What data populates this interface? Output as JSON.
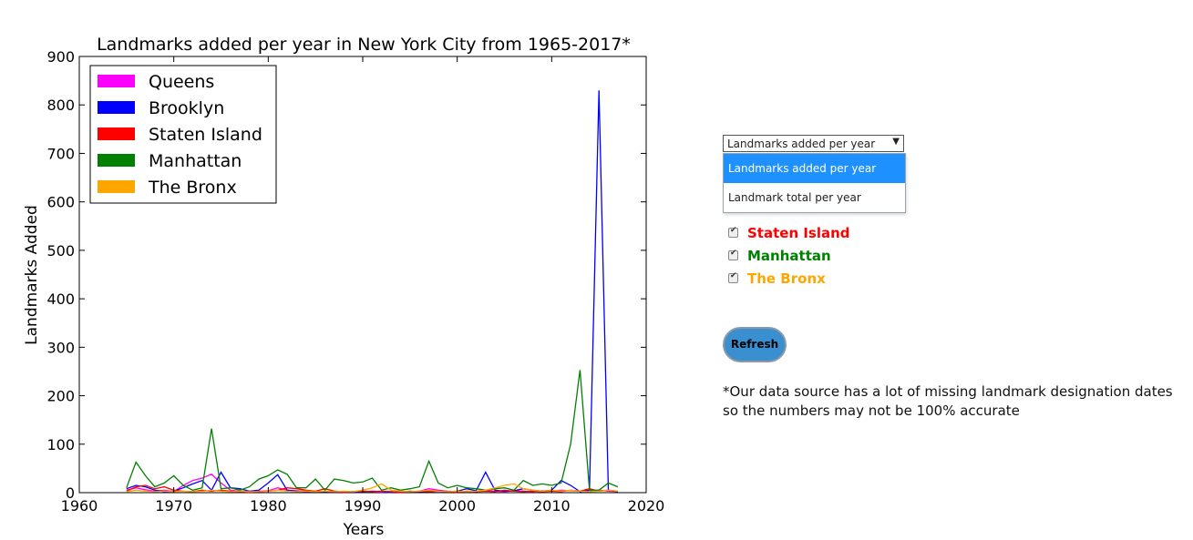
{
  "chart_data": {
    "type": "line",
    "title": "Landmarks added per year in New York City from 1965-2017*",
    "xlabel": "Years",
    "ylabel": "Landmarks Added",
    "xlim": [
      1960,
      2020
    ],
    "ylim": [
      0,
      900
    ],
    "xticks": [
      "1960",
      "1970",
      "1980",
      "1990",
      "2000",
      "2010",
      "2020"
    ],
    "yticks": [
      "0",
      "100",
      "200",
      "300",
      "400",
      "500",
      "600",
      "700",
      "800",
      "900"
    ],
    "legend_position": "top-left",
    "grid": false,
    "series": [
      {
        "name": "Queens",
        "color": "#ff00ff",
        "x": [
          1965,
          1966,
          1967,
          1968,
          1969,
          1970,
          1971,
          1972,
          1973,
          1974,
          1975,
          1976,
          1977,
          1978,
          1979,
          1980,
          1981,
          1982,
          1983,
          1984,
          1985,
          1986,
          1987,
          1988,
          1989,
          1990,
          1991,
          1992,
          1993,
          1994,
          1995,
          1996,
          1997,
          1998,
          1999,
          2000,
          2001,
          2002,
          2003,
          2004,
          2005,
          2006,
          2007,
          2008,
          2009,
          2010,
          2011,
          2012,
          2013,
          2014,
          2015,
          2016,
          2017
        ],
        "y": [
          5,
          10,
          6,
          3,
          5,
          2,
          15,
          25,
          30,
          38,
          20,
          5,
          3,
          2,
          3,
          4,
          10,
          5,
          4,
          3,
          2,
          3,
          2,
          1,
          2,
          3,
          2,
          1,
          2,
          1,
          2,
          3,
          8,
          5,
          3,
          2,
          2,
          3,
          5,
          3,
          2,
          4,
          3,
          2,
          4,
          3,
          5,
          4,
          3,
          2,
          5,
          3,
          2
        ]
      },
      {
        "name": "Brooklyn",
        "color": "#0000ff",
        "x": [
          1965,
          1966,
          1967,
          1968,
          1969,
          1970,
          1971,
          1972,
          1973,
          1974,
          1975,
          1976,
          1977,
          1978,
          1979,
          1980,
          1981,
          1982,
          1983,
          1984,
          1985,
          1986,
          1987,
          1988,
          1989,
          1990,
          1991,
          1992,
          1993,
          1994,
          1995,
          1996,
          1997,
          1998,
          1999,
          2000,
          2001,
          2002,
          2003,
          2004,
          2005,
          2006,
          2007,
          2008,
          2009,
          2010,
          2011,
          2012,
          2013,
          2014,
          2015,
          2016,
          2017
        ],
        "y": [
          8,
          15,
          12,
          5,
          2,
          3,
          10,
          18,
          25,
          5,
          42,
          10,
          8,
          3,
          5,
          20,
          37,
          5,
          3,
          2,
          3,
          2,
          3,
          2,
          1,
          2,
          3,
          2,
          1,
          2,
          3,
          2,
          2,
          3,
          2,
          3,
          8,
          4,
          42,
          5,
          3,
          4,
          8,
          5,
          3,
          5,
          25,
          15,
          2,
          5,
          830,
          5,
          2
        ]
      },
      {
        "name": "Staten Island",
        "color": "#ff0000",
        "x": [
          1965,
          1966,
          1967,
          1968,
          1969,
          1970,
          1971,
          1972,
          1973,
          1974,
          1975,
          1976,
          1977,
          1978,
          1979,
          1980,
          1981,
          1982,
          1983,
          1984,
          1985,
          1986,
          1987,
          1988,
          1989,
          1990,
          1991,
          1992,
          1993,
          1994,
          1995,
          1996,
          1997,
          1998,
          1999,
          2000,
          2001,
          2002,
          2003,
          2004,
          2005,
          2006,
          2007,
          2008,
          2009,
          2010,
          2011,
          2012,
          2013,
          2014,
          2015,
          2016,
          2017
        ],
        "y": [
          3,
          12,
          15,
          8,
          12,
          5,
          3,
          2,
          5,
          3,
          5,
          3,
          2,
          1,
          2,
          3,
          5,
          10,
          8,
          5,
          3,
          8,
          3,
          1,
          2,
          3,
          2,
          3,
          2,
          1,
          2,
          3,
          2,
          3,
          2,
          1,
          3,
          2,
          3,
          2,
          5,
          3,
          2,
          3,
          2,
          3,
          2,
          5,
          3,
          8,
          3,
          5,
          3
        ]
      },
      {
        "name": "Manhattan",
        "color": "#008000",
        "x": [
          1965,
          1966,
          1967,
          1968,
          1969,
          1970,
          1971,
          1972,
          1973,
          1974,
          1975,
          1976,
          1977,
          1978,
          1979,
          1980,
          1981,
          1982,
          1983,
          1984,
          1985,
          1986,
          1987,
          1988,
          1989,
          1990,
          1991,
          1992,
          1993,
          1994,
          1995,
          1996,
          1997,
          1998,
          1999,
          2000,
          2001,
          2002,
          2003,
          2004,
          2005,
          2006,
          2007,
          2008,
          2009,
          2010,
          2011,
          2012,
          2013,
          2014,
          2015,
          2016,
          2017
        ],
        "y": [
          10,
          63,
          35,
          12,
          20,
          35,
          15,
          5,
          10,
          132,
          8,
          10,
          5,
          12,
          28,
          35,
          47,
          38,
          10,
          10,
          28,
          5,
          28,
          25,
          20,
          22,
          30,
          5,
          10,
          5,
          8,
          12,
          65,
          20,
          10,
          15,
          10,
          8,
          5,
          8,
          10,
          5,
          25,
          15,
          18,
          15,
          20,
          100,
          253,
          5,
          5,
          20,
          12
        ]
      },
      {
        "name": "The Bronx",
        "color": "#ffa500",
        "x": [
          1965,
          1966,
          1967,
          1968,
          1969,
          1970,
          1971,
          1972,
          1973,
          1974,
          1975,
          1976,
          1977,
          1978,
          1979,
          1980,
          1981,
          1982,
          1983,
          1984,
          1985,
          1986,
          1987,
          1988,
          1989,
          1990,
          1991,
          1992,
          1993,
          1994,
          1995,
          1996,
          1997,
          1998,
          1999,
          2000,
          2001,
          2002,
          2003,
          2004,
          2005,
          2006,
          2007,
          2008,
          2009,
          2010,
          2011,
          2012,
          2013,
          2014,
          2015,
          2016,
          2017
        ],
        "y": [
          2,
          5,
          3,
          2,
          3,
          2,
          3,
          2,
          3,
          5,
          3,
          2,
          3,
          2,
          2,
          3,
          5,
          3,
          2,
          3,
          2,
          3,
          2,
          3,
          2,
          5,
          10,
          18,
          5,
          3,
          2,
          3,
          5,
          3,
          2,
          3,
          2,
          3,
          5,
          10,
          15,
          18,
          8,
          5,
          3,
          5,
          3,
          5,
          3,
          2,
          3,
          5,
          3
        ]
      }
    ]
  },
  "controls": {
    "select": {
      "value": "Landmarks added per year",
      "options": [
        "Landmarks added per year",
        "Landmark total per year"
      ]
    },
    "checkboxes": [
      {
        "label": "Staten Island",
        "color": "#ff0000",
        "checked": true
      },
      {
        "label": "Manhattan",
        "color": "#008000",
        "checked": true
      },
      {
        "label": "The Bronx",
        "color": "#ffa500",
        "checked": true
      }
    ],
    "refresh_label": "Refresh"
  },
  "footnote": {
    "line1": "*Our data source has a lot of missing landmark designation dates",
    "line2": "so the numbers may not be 100% accurate"
  }
}
